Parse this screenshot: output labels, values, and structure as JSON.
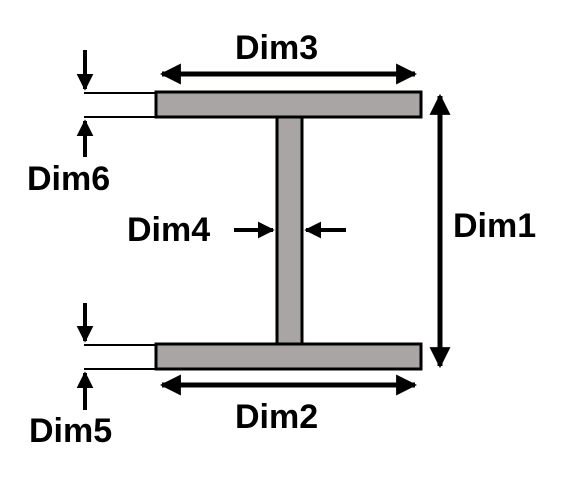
{
  "labels": {
    "dim1": "Dim1",
    "dim2": "Dim2",
    "dim3": "Dim3",
    "dim4": "Dim4",
    "dim5": "Dim5",
    "dim6": "Dim6"
  },
  "colors": {
    "section_fill": "#aaa5a5",
    "outline": "#000000",
    "background": "#ffffff"
  }
}
